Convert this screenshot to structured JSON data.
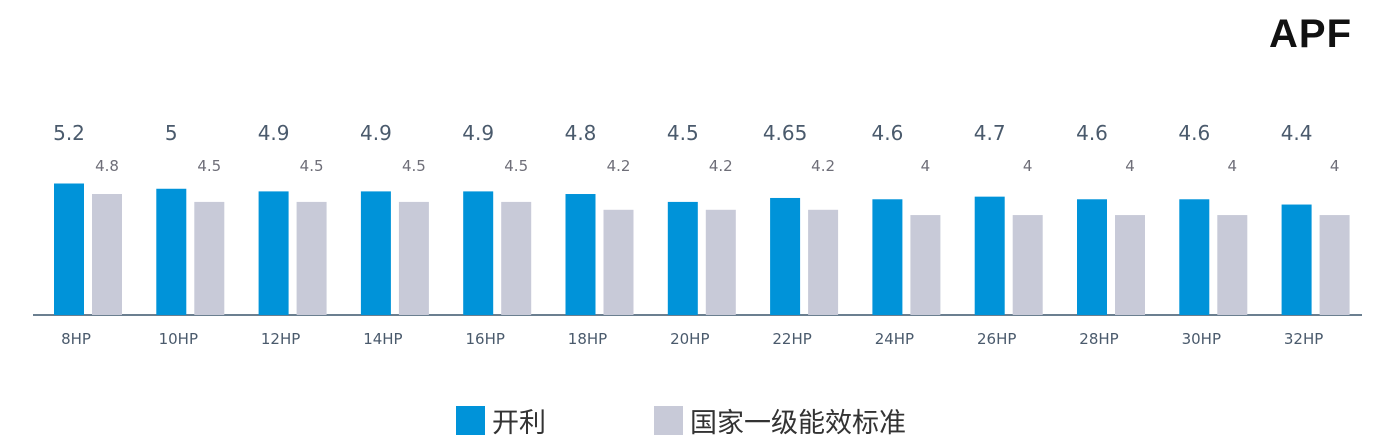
{
  "chart_data": {
    "type": "bar",
    "title": "APF",
    "categories": [
      "8HP",
      "10HP",
      "12HP",
      "14HP",
      "16HP",
      "18HP",
      "20HP",
      "22HP",
      "24HP",
      "26HP",
      "28HP",
      "30HP",
      "32HP"
    ],
    "series": [
      {
        "name": "开利",
        "color": "#0093d9",
        "values": [
          5.2,
          5,
          4.9,
          4.9,
          4.9,
          4.8,
          4.5,
          4.65,
          4.6,
          4.7,
          4.6,
          4.6,
          4.4
        ],
        "labels": [
          "5.2",
          "5",
          "4.9",
          "4.9",
          "4.9",
          "4.8",
          "4.5",
          "4.65",
          "4.6",
          "4.7",
          "4.6",
          "4.6",
          "4.4"
        ]
      },
      {
        "name": "国家一级能效标准",
        "color": "#c8cad8",
        "values": [
          4.8,
          4.5,
          4.5,
          4.5,
          4.5,
          4.2,
          4.2,
          4.2,
          4,
          4,
          4,
          4,
          4
        ],
        "labels": [
          "4.8",
          "4.5",
          "4.5",
          "4.5",
          "4.5",
          "4.2",
          "4.2",
          "4.2",
          "4",
          "4",
          "4",
          "4",
          "4"
        ]
      }
    ],
    "xlabel": "",
    "ylabel": "",
    "y_axis_visible": false,
    "grid": false,
    "legend_position": "bottom-center",
    "colors": {
      "baseline": "#6b7f90",
      "primary_label": "#4a5a6c",
      "secondary_label": "#6e6e78",
      "category_label": "#4a5a6c",
      "legend_text": "#333333"
    }
  }
}
